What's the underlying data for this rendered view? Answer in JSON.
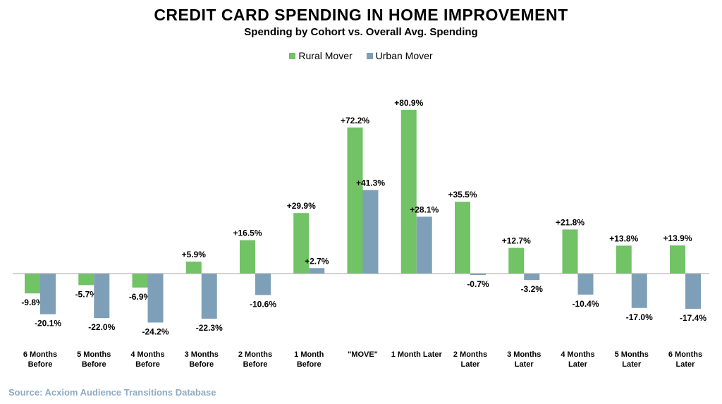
{
  "chart_data": {
    "type": "bar",
    "title": "CREDIT CARD SPENDING IN HOME IMPROVEMENT",
    "subtitle": "Spending by Cohort vs. Overall Avg. Spending",
    "categories": [
      [
        "6 Months",
        "Before"
      ],
      [
        "5 Months",
        "Before"
      ],
      [
        "4 Months",
        "Before"
      ],
      [
        "3 Months",
        "Before"
      ],
      [
        "2 Months",
        "Before"
      ],
      [
        "1 Month",
        "Before"
      ],
      [
        "\"MOVE\""
      ],
      [
        "1 Month Later"
      ],
      [
        "2 Months",
        "Later"
      ],
      [
        "3 Months",
        "Later"
      ],
      [
        "4 Months",
        "Later"
      ],
      [
        "5 Months",
        "Later"
      ],
      [
        "6 Months",
        "Later"
      ]
    ],
    "series": [
      {
        "name": "Rural Mover",
        "color": "#72c266",
        "values": [
          -9.8,
          -5.7,
          -6.9,
          5.9,
          16.5,
          29.9,
          72.2,
          80.9,
          35.5,
          12.7,
          21.8,
          13.8,
          13.9
        ],
        "labels": [
          "-9.8%",
          "-5.7%",
          "-6.9%",
          "+5.9%",
          "+16.5%",
          "+29.9%",
          "+72.2%",
          "+80.9%",
          "+35.5%",
          "+12.7%",
          "+21.8%",
          "+13.8%",
          "+13.9%"
        ]
      },
      {
        "name": "Urban Mover",
        "color": "#7e9fb8",
        "values": [
          -20.1,
          -22.0,
          -24.2,
          -22.3,
          -10.6,
          2.7,
          41.3,
          28.1,
          -0.7,
          -3.2,
          -10.4,
          -17.0,
          -17.4
        ],
        "labels": [
          "-20.1%",
          "-22.0%",
          "-24.2%",
          "-22.3%",
          "-10.6%",
          "+2.7%",
          "+41.3%",
          "+28.1%",
          "-0.7%",
          "-3.2%",
          "-10.4%",
          "-17.0%",
          "-17.4%"
        ]
      }
    ],
    "unit": "%",
    "legend": "top-center",
    "grid": false
  },
  "source": "Source: Acxiom Audience Transitions Database"
}
